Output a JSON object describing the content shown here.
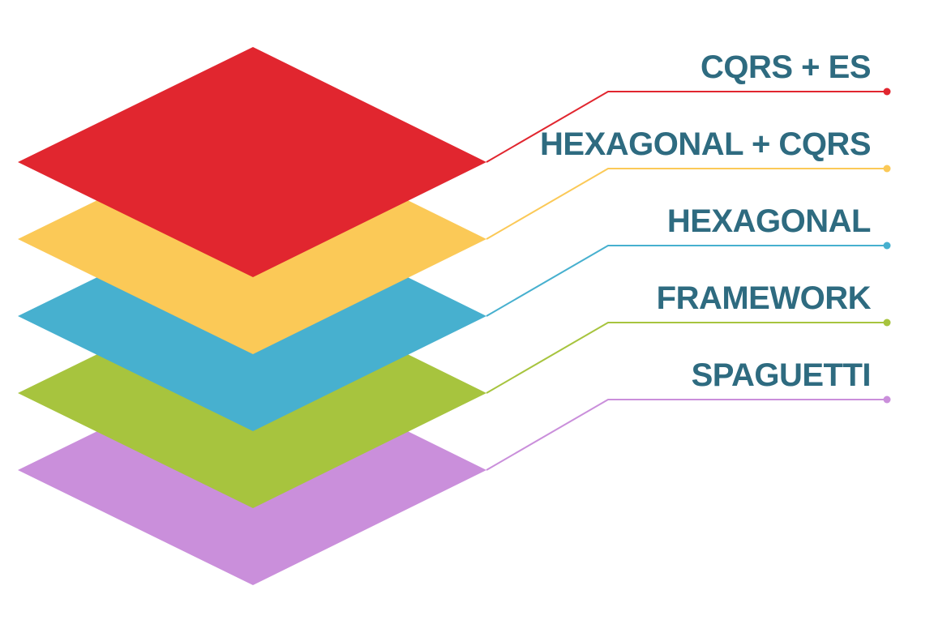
{
  "colors": {
    "label_text": "#2e6b80",
    "background": "#ffffff"
  },
  "layers": [
    {
      "label": "CQRS + ES",
      "color": "#e1262f"
    },
    {
      "label": "HEXAGONAL + CQRS",
      "color": "#fbc957"
    },
    {
      "label": "HEXAGONAL",
      "color": "#47b0cf"
    },
    {
      "label": "FRAMEWORK",
      "color": "#a7c43e"
    },
    {
      "label": "SPAGUETTI",
      "color": "#ca8fdb"
    }
  ]
}
